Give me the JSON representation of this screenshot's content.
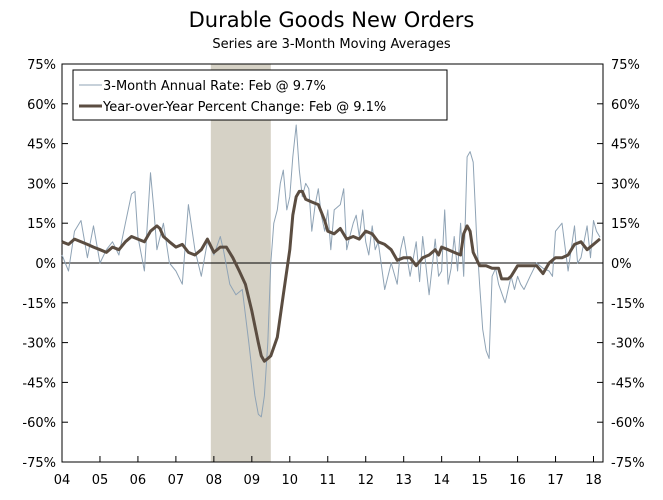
{
  "chart_data": {
    "type": "line",
    "title": "Durable Goods New Orders",
    "subtitle": "Series are 3-Month Moving Averages",
    "ylim": [
      -75,
      75
    ],
    "y_ticks": [
      75,
      60,
      45,
      30,
      15,
      0,
      -15,
      -30,
      -45,
      -60,
      -75
    ],
    "y_tick_labels": [
      "75%",
      "60%",
      "45%",
      "30%",
      "15%",
      "0%",
      "-15%",
      "-30%",
      "-45%",
      "-60%",
      "-75%"
    ],
    "xlim": [
      2004.0,
      2018.25
    ],
    "x_tick_labels": [
      "04",
      "05",
      "06",
      "07",
      "08",
      "09",
      "10",
      "11",
      "12",
      "13",
      "14",
      "15",
      "16",
      "17",
      "18"
    ],
    "recession": {
      "start": 2007.92,
      "end": 2009.5
    },
    "colors": {
      "annual_rate": "#8fa3b5",
      "yoy": "#5b4d41",
      "recession": "#d6d2c6"
    },
    "legend_position": "top-left",
    "series": [
      {
        "name": "3-Month Annual Rate: Feb @ 9.7%",
        "style": "thin",
        "points": [
          [
            2004.0,
            3
          ],
          [
            2004.17,
            -3
          ],
          [
            2004.33,
            12
          ],
          [
            2004.5,
            16
          ],
          [
            2004.67,
            2
          ],
          [
            2004.83,
            14
          ],
          [
            2005.0,
            0
          ],
          [
            2005.17,
            5
          ],
          [
            2005.33,
            8
          ],
          [
            2005.5,
            3
          ],
          [
            2005.67,
            15
          ],
          [
            2005.83,
            26
          ],
          [
            2005.92,
            27
          ],
          [
            2006.0,
            10
          ],
          [
            2006.17,
            -3
          ],
          [
            2006.33,
            34
          ],
          [
            2006.42,
            20
          ],
          [
            2006.5,
            5
          ],
          [
            2006.67,
            15
          ],
          [
            2006.83,
            0
          ],
          [
            2007.0,
            -3
          ],
          [
            2007.17,
            -8
          ],
          [
            2007.33,
            22
          ],
          [
            2007.5,
            5
          ],
          [
            2007.67,
            -5
          ],
          [
            2007.83,
            8
          ],
          [
            2008.0,
            3
          ],
          [
            2008.17,
            10
          ],
          [
            2008.25,
            5
          ],
          [
            2008.42,
            -8
          ],
          [
            2008.58,
            -12
          ],
          [
            2008.75,
            -10
          ],
          [
            2008.92,
            -30
          ],
          [
            2009.0,
            -40
          ],
          [
            2009.08,
            -50
          ],
          [
            2009.17,
            -57
          ],
          [
            2009.25,
            -58
          ],
          [
            2009.33,
            -50
          ],
          [
            2009.42,
            -30
          ],
          [
            2009.5,
            0
          ],
          [
            2009.58,
            15
          ],
          [
            2009.67,
            20
          ],
          [
            2009.75,
            30
          ],
          [
            2009.83,
            35
          ],
          [
            2009.92,
            20
          ],
          [
            2010.0,
            25
          ],
          [
            2010.08,
            40
          ],
          [
            2010.17,
            52
          ],
          [
            2010.25,
            35
          ],
          [
            2010.33,
            25
          ],
          [
            2010.42,
            30
          ],
          [
            2010.5,
            28
          ],
          [
            2010.58,
            12
          ],
          [
            2010.67,
            22
          ],
          [
            2010.75,
            28
          ],
          [
            2010.83,
            18
          ],
          [
            2010.92,
            12
          ],
          [
            2011.0,
            20
          ],
          [
            2011.08,
            5
          ],
          [
            2011.17,
            20
          ],
          [
            2011.33,
            22
          ],
          [
            2011.42,
            28
          ],
          [
            2011.5,
            5
          ],
          [
            2011.58,
            10
          ],
          [
            2011.67,
            15
          ],
          [
            2011.75,
            18
          ],
          [
            2011.83,
            10
          ],
          [
            2011.92,
            20
          ],
          [
            2012.0,
            8
          ],
          [
            2012.08,
            3
          ],
          [
            2012.17,
            14
          ],
          [
            2012.25,
            5
          ],
          [
            2012.33,
            8
          ],
          [
            2012.5,
            -10
          ],
          [
            2012.67,
            0
          ],
          [
            2012.83,
            -8
          ],
          [
            2012.92,
            5
          ],
          [
            2013.0,
            10
          ],
          [
            2013.17,
            -5
          ],
          [
            2013.33,
            8
          ],
          [
            2013.42,
            -7
          ],
          [
            2013.5,
            10
          ],
          [
            2013.67,
            -12
          ],
          [
            2013.83,
            9
          ],
          [
            2013.92,
            -5
          ],
          [
            2014.0,
            -3
          ],
          [
            2014.08,
            20
          ],
          [
            2014.17,
            -8
          ],
          [
            2014.25,
            -2
          ],
          [
            2014.33,
            10
          ],
          [
            2014.42,
            -3
          ],
          [
            2014.5,
            15
          ],
          [
            2014.58,
            -5
          ],
          [
            2014.67,
            40
          ],
          [
            2014.75,
            42
          ],
          [
            2014.83,
            38
          ],
          [
            2014.92,
            10
          ],
          [
            2015.0,
            -8
          ],
          [
            2015.08,
            -25
          ],
          [
            2015.17,
            -33
          ],
          [
            2015.25,
            -36
          ],
          [
            2015.33,
            -5
          ],
          [
            2015.42,
            -2
          ],
          [
            2015.5,
            -8
          ],
          [
            2015.67,
            -15
          ],
          [
            2015.83,
            -5
          ],
          [
            2015.92,
            -10
          ],
          [
            2016.0,
            -5
          ],
          [
            2016.08,
            -8
          ],
          [
            2016.17,
            -10
          ],
          [
            2016.33,
            -5
          ],
          [
            2016.5,
            0
          ],
          [
            2016.67,
            -2
          ],
          [
            2016.83,
            -3
          ],
          [
            2016.92,
            -5
          ],
          [
            2017.0,
            12
          ],
          [
            2017.17,
            15
          ],
          [
            2017.33,
            -3
          ],
          [
            2017.5,
            14
          ],
          [
            2017.58,
            0
          ],
          [
            2017.67,
            2
          ],
          [
            2017.75,
            8
          ],
          [
            2017.83,
            14
          ],
          [
            2017.92,
            2
          ],
          [
            2018.0,
            16
          ],
          [
            2018.08,
            12
          ],
          [
            2018.17,
            9.7
          ]
        ]
      },
      {
        "name": "Year-over-Year Percent Change: Feb @ 9.1%",
        "style": "thick",
        "points": [
          [
            2004.0,
            8
          ],
          [
            2004.17,
            7
          ],
          [
            2004.33,
            9
          ],
          [
            2004.5,
            8
          ],
          [
            2004.67,
            7
          ],
          [
            2004.83,
            6
          ],
          [
            2005.0,
            5
          ],
          [
            2005.17,
            4
          ],
          [
            2005.33,
            6
          ],
          [
            2005.5,
            5
          ],
          [
            2005.67,
            8
          ],
          [
            2005.83,
            10
          ],
          [
            2006.0,
            9
          ],
          [
            2006.17,
            8
          ],
          [
            2006.33,
            12
          ],
          [
            2006.5,
            14
          ],
          [
            2006.58,
            13
          ],
          [
            2006.67,
            10
          ],
          [
            2006.83,
            8
          ],
          [
            2007.0,
            6
          ],
          [
            2007.17,
            7
          ],
          [
            2007.33,
            4
          ],
          [
            2007.5,
            3
          ],
          [
            2007.67,
            5
          ],
          [
            2007.83,
            9
          ],
          [
            2008.0,
            4
          ],
          [
            2008.17,
            6
          ],
          [
            2008.33,
            6
          ],
          [
            2008.5,
            2
          ],
          [
            2008.67,
            -3
          ],
          [
            2008.83,
            -8
          ],
          [
            2009.0,
            -18
          ],
          [
            2009.17,
            -30
          ],
          [
            2009.25,
            -35
          ],
          [
            2009.33,
            -37
          ],
          [
            2009.42,
            -36
          ],
          [
            2009.5,
            -35
          ],
          [
            2009.67,
            -28
          ],
          [
            2009.83,
            -12
          ],
          [
            2010.0,
            5
          ],
          [
            2010.08,
            18
          ],
          [
            2010.17,
            25
          ],
          [
            2010.25,
            27
          ],
          [
            2010.33,
            27
          ],
          [
            2010.42,
            24
          ],
          [
            2010.58,
            23
          ],
          [
            2010.75,
            22
          ],
          [
            2010.92,
            16
          ],
          [
            2011.0,
            12
          ],
          [
            2011.17,
            11
          ],
          [
            2011.33,
            13
          ],
          [
            2011.5,
            9
          ],
          [
            2011.67,
            10
          ],
          [
            2011.83,
            9
          ],
          [
            2012.0,
            12
          ],
          [
            2012.17,
            11
          ],
          [
            2012.33,
            8
          ],
          [
            2012.5,
            7
          ],
          [
            2012.67,
            5
          ],
          [
            2012.83,
            1
          ],
          [
            2013.0,
            2
          ],
          [
            2013.17,
            2
          ],
          [
            2013.33,
            -1
          ],
          [
            2013.5,
            2
          ],
          [
            2013.67,
            3
          ],
          [
            2013.83,
            5
          ],
          [
            2013.92,
            3
          ],
          [
            2014.0,
            6
          ],
          [
            2014.17,
            5
          ],
          [
            2014.33,
            4
          ],
          [
            2014.5,
            3
          ],
          [
            2014.58,
            11
          ],
          [
            2014.67,
            14
          ],
          [
            2014.75,
            12
          ],
          [
            2014.83,
            4
          ],
          [
            2015.0,
            -1
          ],
          [
            2015.17,
            -1
          ],
          [
            2015.33,
            -2
          ],
          [
            2015.5,
            -2
          ],
          [
            2015.58,
            -6
          ],
          [
            2015.75,
            -6
          ],
          [
            2015.83,
            -5
          ],
          [
            2016.0,
            -1
          ],
          [
            2016.17,
            -1
          ],
          [
            2016.33,
            -1
          ],
          [
            2016.5,
            -1
          ],
          [
            2016.67,
            -4
          ],
          [
            2016.83,
            0
          ],
          [
            2017.0,
            2
          ],
          [
            2017.17,
            2
          ],
          [
            2017.33,
            3
          ],
          [
            2017.5,
            7
          ],
          [
            2017.67,
            8
          ],
          [
            2017.83,
            5
          ],
          [
            2018.0,
            7
          ],
          [
            2018.17,
            9.1
          ]
        ]
      }
    ]
  }
}
